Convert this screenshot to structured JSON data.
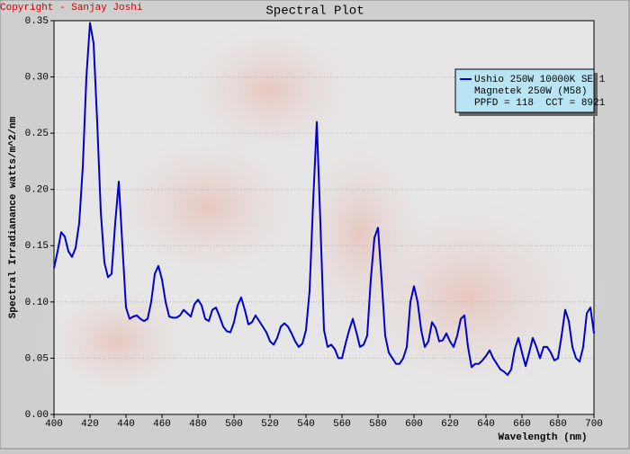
{
  "chart_data": {
    "type": "line",
    "title": "Spectral Plot",
    "copyright": "Copyright - Sanjay Joshi",
    "xlabel": "Wavelength (nm)",
    "ylabel": "Spectral Irradianance watts/m^2/nm",
    "xlim": [
      400,
      700
    ],
    "ylim": [
      0,
      0.35
    ],
    "xticks": [
      400,
      420,
      440,
      460,
      480,
      500,
      520,
      540,
      560,
      580,
      600,
      620,
      640,
      660,
      680,
      700
    ],
    "yticks": [
      {
        "value": 0,
        "label": "0.00"
      },
      0.05,
      {
        "value": 0.1,
        "label": "0.10"
      },
      0.15,
      {
        "value": 0.2,
        "label": "0.20"
      },
      0.25,
      {
        "value": 0.3,
        "label": "0.30"
      },
      0.35
    ],
    "grid": true,
    "legend": "upper right",
    "legend_notes": [
      "Magnetek 250W (M58)",
      "PPFD = 118  CCT = 8921"
    ],
    "x": [
      400,
      402,
      404,
      406,
      408,
      410,
      412,
      414,
      416,
      418,
      420,
      422,
      424,
      426,
      428,
      430,
      432,
      434,
      436,
      438,
      440,
      442,
      444,
      446,
      448,
      450,
      452,
      454,
      456,
      458,
      460,
      462,
      464,
      466,
      468,
      470,
      472,
      474,
      476,
      478,
      480,
      482,
      484,
      486,
      488,
      490,
      492,
      494,
      496,
      498,
      500,
      502,
      504,
      506,
      508,
      510,
      512,
      514,
      516,
      518,
      520,
      522,
      524,
      526,
      528,
      530,
      532,
      534,
      536,
      538,
      540,
      542,
      544,
      546,
      548,
      550,
      552,
      554,
      556,
      558,
      560,
      562,
      564,
      566,
      568,
      570,
      572,
      574,
      576,
      578,
      580,
      582,
      584,
      586,
      588,
      590,
      592,
      594,
      596,
      598,
      600,
      602,
      604,
      606,
      608,
      610,
      612,
      614,
      616,
      618,
      620,
      622,
      624,
      626,
      628,
      630,
      632,
      634,
      636,
      638,
      640,
      642,
      644,
      646,
      648,
      650,
      652,
      654,
      656,
      658,
      660,
      662,
      664,
      666,
      668,
      670,
      672,
      674,
      676,
      678,
      680,
      682,
      684,
      686,
      688,
      690,
      692,
      694,
      696,
      698,
      700
    ],
    "series": [
      {
        "name": "Ushio 250W 10000K SE 1",
        "color": "#0000cc",
        "values": [
          0.13,
          0.145,
          0.162,
          0.158,
          0.145,
          0.14,
          0.148,
          0.17,
          0.22,
          0.3,
          0.348,
          0.33,
          0.26,
          0.18,
          0.135,
          0.122,
          0.125,
          0.17,
          0.207,
          0.15,
          0.095,
          0.085,
          0.087,
          0.088,
          0.085,
          0.083,
          0.085,
          0.1,
          0.125,
          0.132,
          0.12,
          0.1,
          0.087,
          0.086,
          0.086,
          0.088,
          0.093,
          0.09,
          0.087,
          0.098,
          0.102,
          0.097,
          0.085,
          0.083,
          0.093,
          0.095,
          0.087,
          0.078,
          0.074,
          0.073,
          0.082,
          0.097,
          0.104,
          0.093,
          0.08,
          0.082,
          0.088,
          0.083,
          0.078,
          0.073,
          0.065,
          0.062,
          0.068,
          0.078,
          0.081,
          0.078,
          0.072,
          0.065,
          0.06,
          0.063,
          0.075,
          0.11,
          0.19,
          0.26,
          0.17,
          0.075,
          0.06,
          0.062,
          0.058,
          0.05,
          0.05,
          0.063,
          0.075,
          0.085,
          0.073,
          0.06,
          0.062,
          0.07,
          0.12,
          0.157,
          0.166,
          0.12,
          0.07,
          0.055,
          0.05,
          0.045,
          0.045,
          0.05,
          0.06,
          0.1,
          0.114,
          0.1,
          0.075,
          0.06,
          0.065,
          0.082,
          0.077,
          0.065,
          0.066,
          0.072,
          0.065,
          0.06,
          0.07,
          0.085,
          0.088,
          0.06,
          0.042,
          0.045,
          0.045,
          0.048,
          0.052,
          0.057,
          0.05,
          0.045,
          0.04,
          0.038,
          0.035,
          0.04,
          0.058,
          0.068,
          0.055,
          0.043,
          0.055,
          0.068,
          0.06,
          0.05,
          0.06,
          0.06,
          0.055,
          0.048,
          0.05,
          0.07,
          0.093,
          0.083,
          0.06,
          0.05,
          0.047,
          0.06,
          0.09,
          0.095,
          0.072
        ]
      }
    ]
  }
}
